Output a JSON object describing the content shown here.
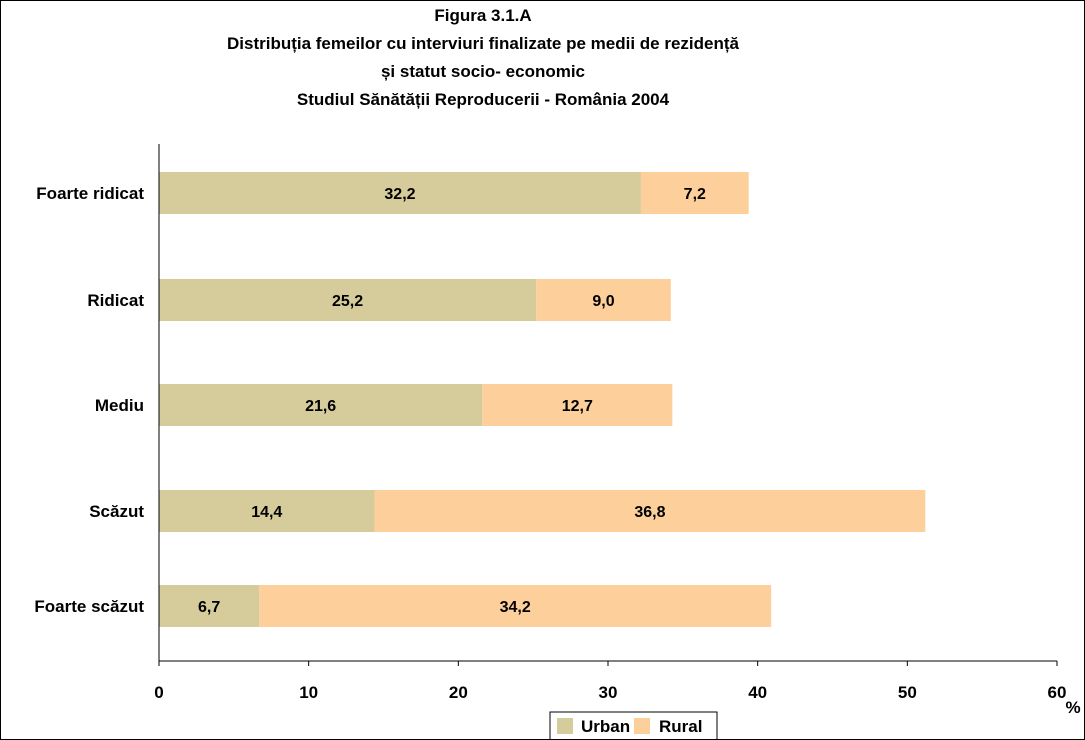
{
  "chart_data": {
    "type": "bar",
    "orientation": "horizontal",
    "stacked": true,
    "title_lines": [
      "Figura 3.1.A",
      "Distribuția femeilor cu interviuri finalizate pe medii de rezidență",
      "și statut socio- economic",
      "Studiul Sănătății Reproducerii - România 2004"
    ],
    "categories": [
      "Foarte ridicat",
      "Ridicat",
      "Mediu",
      "Scăzut",
      "Foarte scăzut"
    ],
    "series": [
      {
        "name": "Urban",
        "values": [
          32.2,
          25.2,
          21.6,
          14.4,
          6.7
        ],
        "labels": [
          "32,2",
          "25,2",
          "21,6",
          "14,4",
          "6,7"
        ],
        "color": "#d6cb9b"
      },
      {
        "name": "Rural",
        "values": [
          7.2,
          9.0,
          12.7,
          36.8,
          34.2
        ],
        "labels": [
          "7,2",
          "9,0",
          "12,7",
          "36,8",
          "34,2"
        ],
        "color": "#fdcf9b"
      }
    ],
    "xlim": [
      0,
      60
    ],
    "x_ticks": [
      "0",
      "10",
      "20",
      "30",
      "40",
      "50",
      "60"
    ],
    "x_unit": "%",
    "grid": false,
    "legend_position": "bottom"
  }
}
